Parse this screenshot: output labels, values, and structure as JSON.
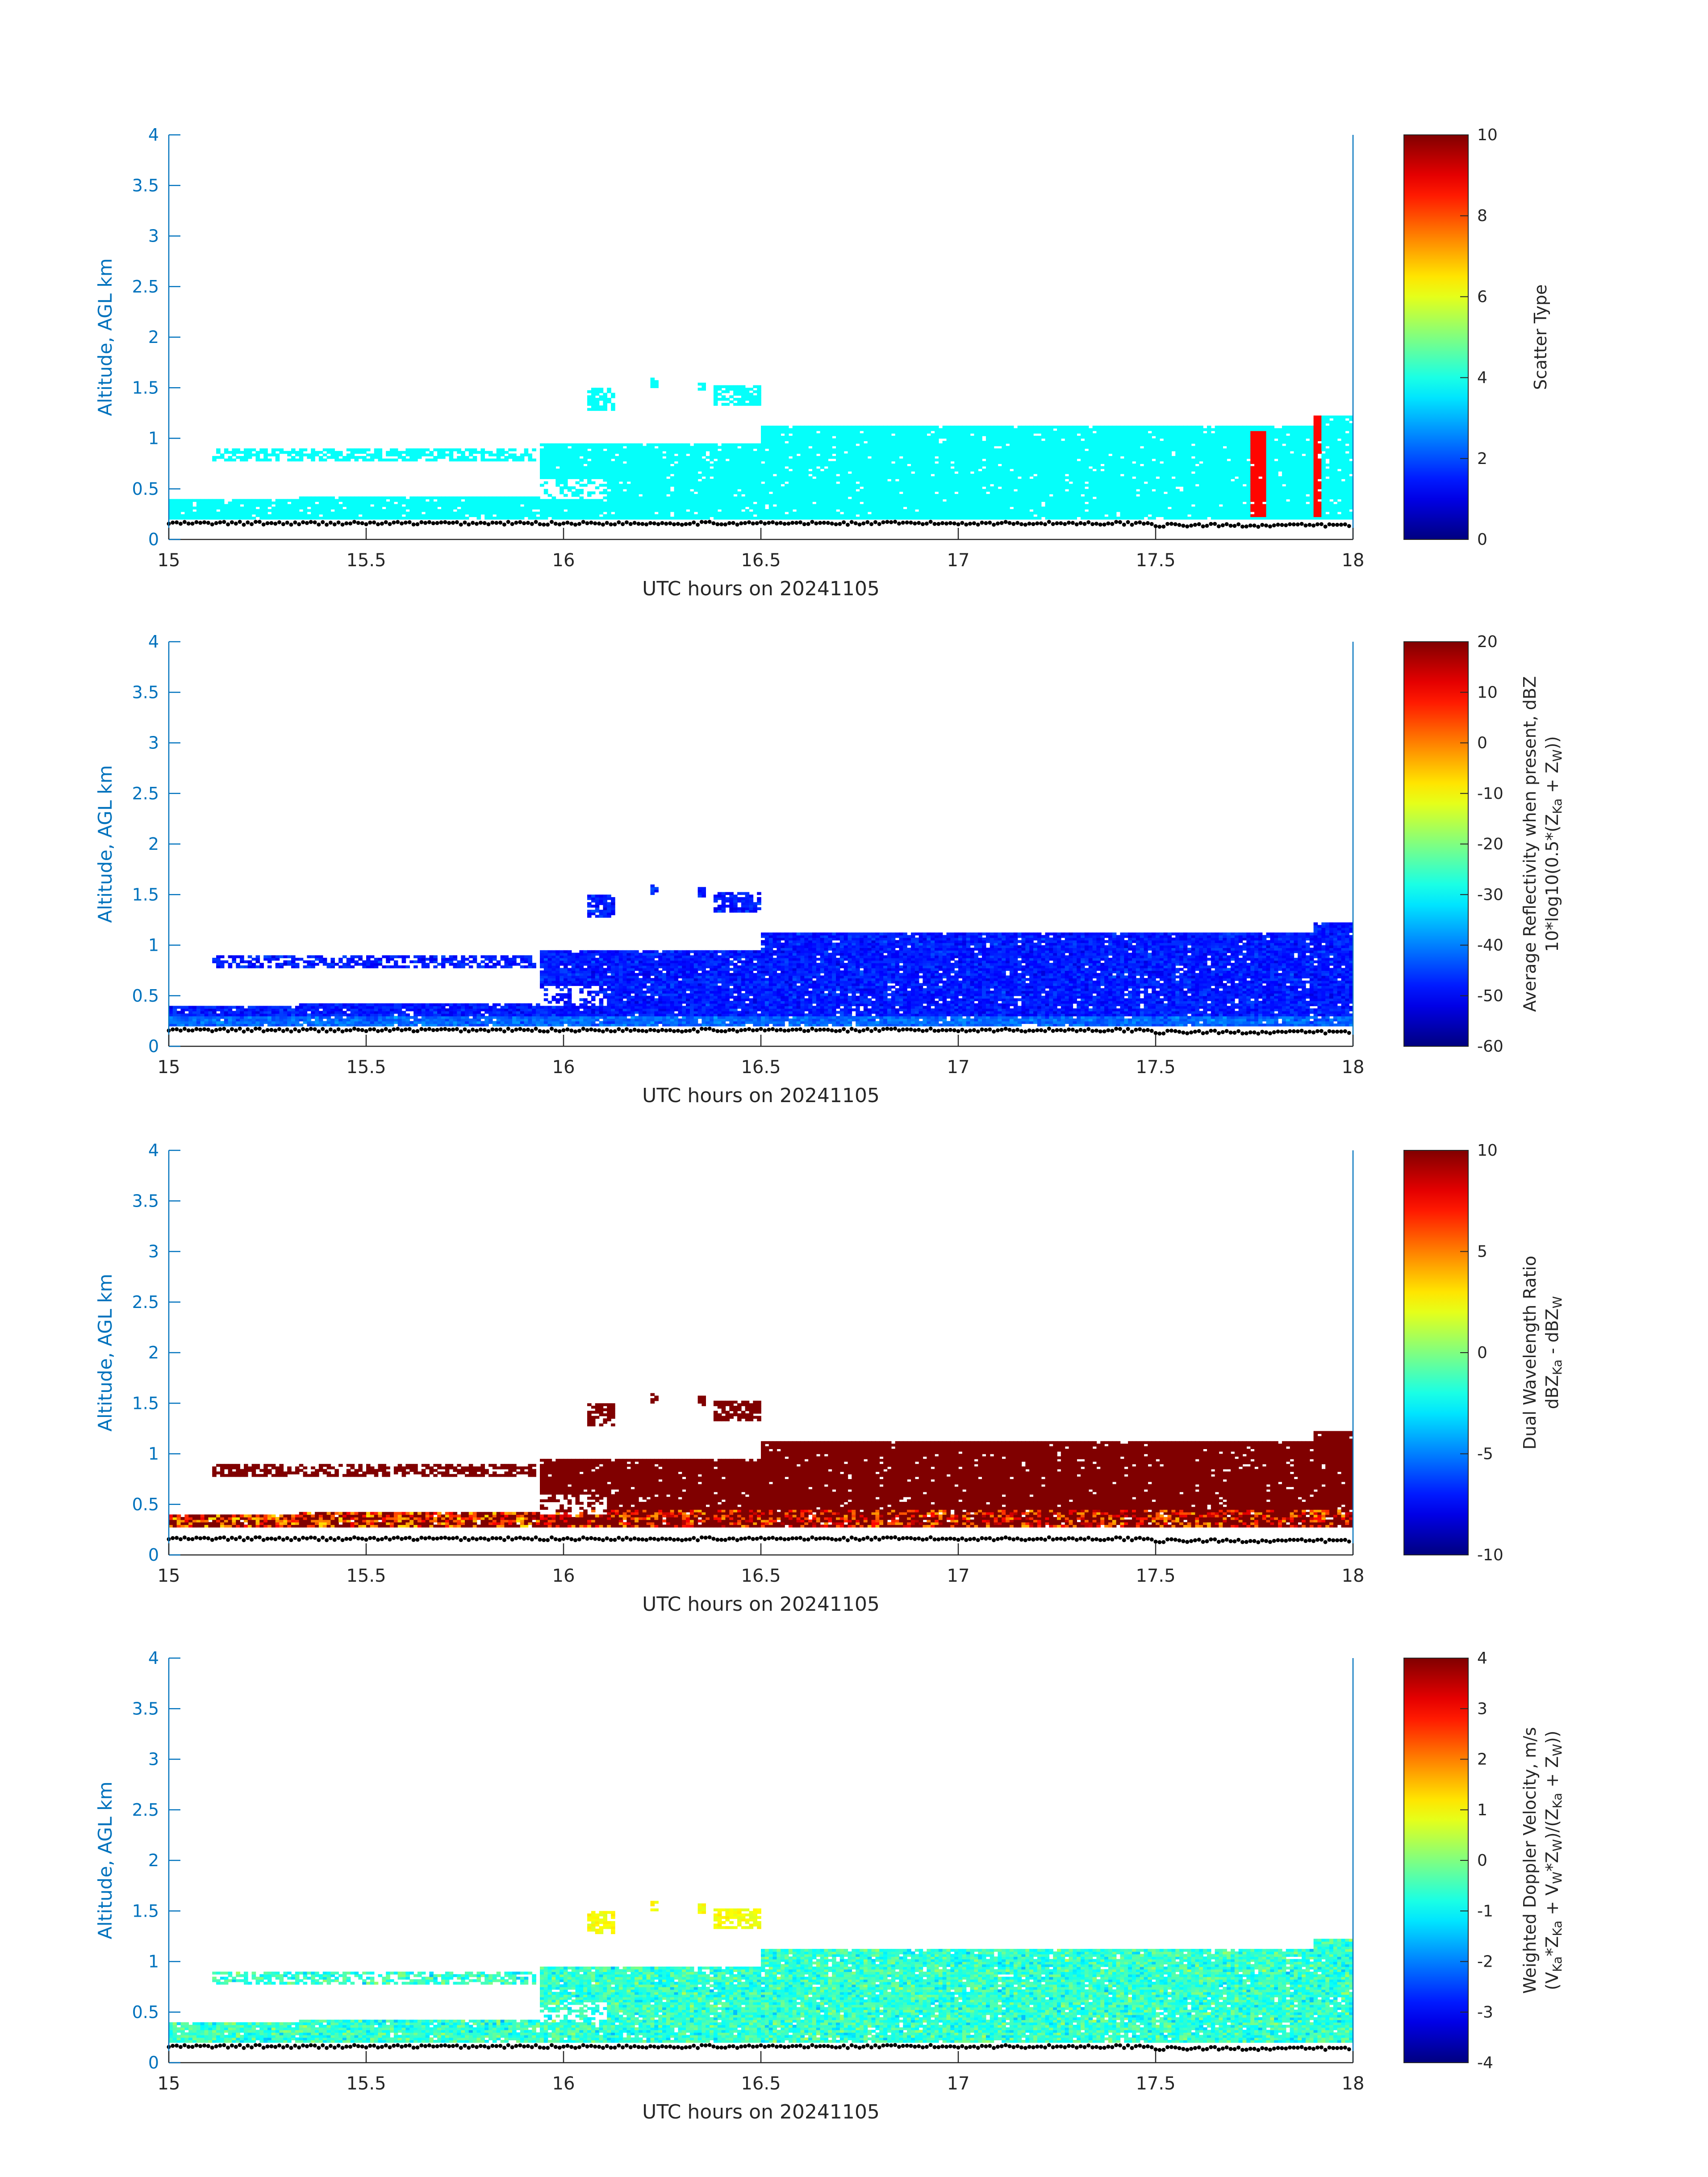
{
  "chart_data": [
    {
      "type": "heatmap",
      "xlabel": "UTC hours on 20241105",
      "ylabel": "Altitude, AGL km",
      "xlim": [
        15,
        18
      ],
      "ylim": [
        0,
        4
      ],
      "xticks": [
        "15",
        "15.5",
        "16",
        "16.5",
        "17",
        "17.5",
        "18"
      ],
      "yticks": [
        "0",
        "0.5",
        "1",
        "1.5",
        "2",
        "2.5",
        "3",
        "3.5",
        "4"
      ],
      "colorbar": {
        "label_lines": [
          "Scatter Type"
        ],
        "range": [
          0,
          10
        ],
        "ticks": [
          "0",
          "2",
          "4",
          "6",
          "8",
          "10"
        ]
      },
      "colormap": "jet",
      "dominant_value": 3.8,
      "features": [
        {
          "x": [
            15.0,
            15.32
          ],
          "y": [
            0.15,
            0.4
          ],
          "value": 3.8
        },
        {
          "x": [
            15.32,
            15.93
          ],
          "y": [
            0.15,
            0.42
          ],
          "value": 3.8
        },
        {
          "x": [
            15.93,
            16.5
          ],
          "y": [
            0.15,
            0.95
          ],
          "value": 3.8
        },
        {
          "x": [
            16.5,
            18.0
          ],
          "y": [
            0.15,
            1.12
          ],
          "value": 3.8
        },
        {
          "x": [
            16.05,
            16.5
          ],
          "y": [
            1.25,
            1.5
          ],
          "value": 3.8
        },
        {
          "x": [
            17.74,
            17.78
          ],
          "y": [
            0.2,
            1.07
          ],
          "value": 8.7
        },
        {
          "x": [
            17.9,
            17.92
          ],
          "y": [
            0.2,
            1.22
          ],
          "value": 8.7
        }
      ]
    },
    {
      "type": "heatmap",
      "xlabel": "UTC hours on 20241105",
      "ylabel": "Altitude, AGL km",
      "xlim": [
        15,
        18
      ],
      "ylim": [
        0,
        4
      ],
      "xticks": [
        "15",
        "15.5",
        "16",
        "16.5",
        "17",
        "17.5",
        "18"
      ],
      "yticks": [
        "0",
        "0.5",
        "1",
        "1.5",
        "2",
        "2.5",
        "3",
        "3.5",
        "4"
      ],
      "colorbar": {
        "label_lines": [
          "Average Reflectivity when present, dBZ",
          "10*log10(0.5*(Z",
          "Ka",
          " + Z",
          "W",
          "))"
        ],
        "range": [
          -60,
          20
        ],
        "ticks": [
          "-60",
          "-50",
          "-40",
          "-30",
          "-20",
          "-10",
          "0",
          "10",
          "20"
        ]
      },
      "colormap": "jet",
      "dominant_value": -48
    },
    {
      "type": "heatmap",
      "xlabel": "UTC hours on 20241105",
      "ylabel": "Altitude, AGL km",
      "xlim": [
        15,
        18
      ],
      "ylim": [
        0,
        4
      ],
      "xticks": [
        "15",
        "15.5",
        "16",
        "16.5",
        "17",
        "17.5",
        "18"
      ],
      "yticks": [
        "0",
        "0.5",
        "1",
        "1.5",
        "2",
        "2.5",
        "3",
        "3.5",
        "4"
      ],
      "colorbar": {
        "label_lines": [
          "Dual Wavelength Ratio",
          "dBZ",
          "Ka",
          " - dBZ",
          "W"
        ],
        "range": [
          -10,
          10
        ],
        "ticks": [
          "-10",
          "-5",
          "0",
          "5",
          "10"
        ]
      },
      "colormap": "jet",
      "dominant_value": 10
    },
    {
      "type": "heatmap",
      "xlabel": "UTC hours on 20241105",
      "ylabel": "Altitude, AGL km",
      "xlim": [
        15,
        18
      ],
      "ylim": [
        0,
        4
      ],
      "xticks": [
        "15",
        "15.5",
        "16",
        "16.5",
        "17",
        "17.5",
        "18"
      ],
      "yticks": [
        "0",
        "0.5",
        "1",
        "1.5",
        "2",
        "2.5",
        "3",
        "3.5",
        "4"
      ],
      "colorbar": {
        "label_lines": [
          "Weighted Doppler Velocity, m/s",
          "(V",
          "Ka",
          "*Z",
          "Ka",
          " + V",
          "W",
          "*Z",
          "W",
          ")/(Z",
          "Ka",
          " + Z",
          "W",
          "))"
        ],
        "range": [
          -4,
          4
        ],
        "ticks": [
          "-4",
          "-3",
          "-2",
          "-1",
          "0",
          "1",
          "2",
          "3",
          "4"
        ]
      },
      "colormap": "jet",
      "dominant_value": -0.6
    }
  ]
}
